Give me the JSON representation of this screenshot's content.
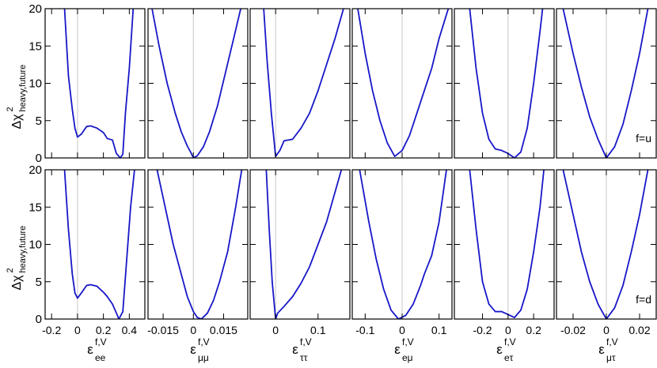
{
  "chart_data": [
    {
      "type": "line",
      "xlim": [
        -0.25,
        0.52
      ],
      "ylim": [
        0,
        20
      ],
      "xticks": [
        -0.2,
        0,
        0.2,
        0.4
      ],
      "yticks": [
        0,
        5,
        10,
        15,
        20
      ],
      "vline": 0,
      "ylabel": {
        "main": "Δχ",
        "sup": "2",
        "sub": "heavy,future"
      },
      "x": [
        -0.1,
        -0.07,
        -0.04,
        -0.02,
        0.0,
        0.03,
        0.07,
        0.1,
        0.15,
        0.2,
        0.23,
        0.27,
        0.3,
        0.33,
        0.35,
        0.37,
        0.4,
        0.43
      ],
      "series": [
        {
          "color": "#1717c8",
          "values": [
            20,
            11,
            6.5,
            4,
            2.8,
            3.2,
            4.2,
            4.3,
            4.0,
            3.4,
            2.6,
            2.4,
            0.6,
            0,
            0.5,
            6,
            12,
            20
          ]
        }
      ]
    },
    {
      "type": "line",
      "xlim": [
        -0.0225,
        0.027
      ],
      "ylim": [
        0,
        20
      ],
      "xticks": [
        -0.015,
        0,
        0.015
      ],
      "yticks": [
        0,
        5,
        10,
        15,
        20
      ],
      "vline": 0,
      "x": [
        -0.0205,
        -0.017,
        -0.013,
        -0.009,
        -0.006,
        -0.003,
        -0.001,
        0,
        0.002,
        0.005,
        0.008,
        0.012,
        0.016,
        0.02,
        0.0235
      ],
      "series": [
        {
          "color": "#1717c8",
          "values": [
            20,
            15,
            10,
            6,
            3.5,
            1.6,
            0.6,
            0,
            0.3,
            1.5,
            3.5,
            7,
            11.5,
            16,
            20
          ]
        }
      ]
    },
    {
      "type": "line",
      "xlim": [
        -0.06,
        0.175
      ],
      "ylim": [
        0,
        20
      ],
      "xticks": [
        0,
        0.1
      ],
      "yticks": [
        0,
        5,
        10,
        15,
        20
      ],
      "vline": 0,
      "x": [
        -0.028,
        -0.02,
        -0.01,
        0,
        0.01,
        0.02,
        0.04,
        0.06,
        0.08,
        0.1,
        0.12,
        0.14,
        0.16
      ],
      "series": [
        {
          "color": "#1717c8",
          "values": [
            20,
            13,
            6,
            0.2,
            1,
            2.3,
            2.5,
            4,
            6,
            9,
            12.5,
            16,
            20
          ]
        }
      ]
    },
    {
      "type": "line",
      "xlim": [
        -0.135,
        0.135
      ],
      "ylim": [
        0,
        20
      ],
      "xticks": [
        -0.1,
        0,
        0.1
      ],
      "yticks": [
        0,
        5,
        10,
        15,
        20
      ],
      "vline": 0,
      "x": [
        -0.12,
        -0.1,
        -0.08,
        -0.06,
        -0.04,
        -0.02,
        0,
        0.02,
        0.04,
        0.06,
        0.08,
        0.1,
        0.125
      ],
      "series": [
        {
          "color": "#1717c8",
          "values": [
            20,
            14,
            9,
            5,
            2,
            0.2,
            1,
            3,
            6,
            9,
            12,
            16,
            20
          ]
        }
      ]
    },
    {
      "type": "line",
      "xlim": [
        -0.42,
        0.36
      ],
      "ylim": [
        0,
        20
      ],
      "xticks": [
        -0.2,
        0,
        0.2
      ],
      "yticks": [
        0,
        5,
        10,
        15,
        20
      ],
      "vline": 0,
      "x": [
        -0.3,
        -0.25,
        -0.2,
        -0.15,
        -0.1,
        -0.05,
        0,
        0.05,
        0.1,
        0.15,
        0.2,
        0.25,
        0.27
      ],
      "series": [
        {
          "color": "#1717c8",
          "values": [
            20,
            12,
            6,
            2.5,
            1.2,
            1,
            0.6,
            0,
            0.8,
            4,
            10,
            17,
            20
          ]
        }
      ]
    },
    {
      "type": "line",
      "xlim": [
        -0.03,
        0.03
      ],
      "ylim": [
        0,
        20
      ],
      "xticks": [
        -0.02,
        0,
        0.02
      ],
      "yticks": [
        0,
        5,
        10,
        15,
        20
      ],
      "vline": 0,
      "annotation": "f=u",
      "x": [
        -0.026,
        -0.02,
        -0.015,
        -0.01,
        -0.005,
        0,
        0.005,
        0.01,
        0.015,
        0.02,
        0.025
      ],
      "series": [
        {
          "color": "#1717c8",
          "values": [
            20,
            14,
            9.5,
            5.5,
            2.5,
            0,
            1.5,
            4.5,
            9,
            14,
            20
          ]
        }
      ]
    },
    {
      "type": "line",
      "xlim": [
        -0.25,
        0.52
      ],
      "ylim": [
        0,
        20
      ],
      "xticks": [
        -0.2,
        0,
        0.2,
        0.4
      ],
      "yticks": [
        0,
        5,
        10,
        15,
        20
      ],
      "vline": 0,
      "ylabel": {
        "main": "Δχ",
        "sup": "2",
        "sub": "heavy,future"
      },
      "xlabel": {
        "main": "ε",
        "sup": "f,V",
        "sub": "ee"
      },
      "x": [
        -0.1,
        -0.07,
        -0.04,
        -0.02,
        0,
        0.03,
        0.07,
        0.1,
        0.15,
        0.2,
        0.23,
        0.27,
        0.3,
        0.32,
        0.35,
        0.38,
        0.41,
        0.44
      ],
      "series": [
        {
          "color": "#1717c8",
          "values": [
            20,
            12,
            6,
            3.5,
            2.8,
            3.5,
            4.5,
            4.6,
            4.4,
            3.6,
            3,
            2,
            0.8,
            0,
            1,
            8,
            15,
            20
          ]
        }
      ]
    },
    {
      "type": "line",
      "xlim": [
        -0.0225,
        0.027
      ],
      "ylim": [
        0,
        20
      ],
      "xticks": [
        -0.015,
        0,
        0.015
      ],
      "yticks": [
        0,
        5,
        10,
        15,
        20
      ],
      "vline": 0,
      "xlabel": {
        "main": "ε",
        "sup": "f,V",
        "sub": "μμ"
      },
      "x": [
        -0.018,
        -0.014,
        -0.01,
        -0.006,
        -0.003,
        0,
        0.002,
        0.004,
        0.007,
        0.01,
        0.013,
        0.017,
        0.021,
        0.024
      ],
      "series": [
        {
          "color": "#1717c8",
          "values": [
            20,
            15,
            10,
            6,
            3,
            1,
            0.2,
            0,
            0.8,
            2.5,
            5,
            9,
            15,
            20
          ]
        }
      ]
    },
    {
      "type": "line",
      "xlim": [
        -0.06,
        0.175
      ],
      "ylim": [
        0,
        20
      ],
      "xticks": [
        0,
        0.1
      ],
      "yticks": [
        0,
        5,
        10,
        15,
        20
      ],
      "vline": 0,
      "xlabel": {
        "main": "ε",
        "sup": "f,V",
        "sub": "ττ"
      },
      "x": [
        -0.022,
        -0.015,
        -0.008,
        0,
        0.005,
        0.02,
        0.04,
        0.06,
        0.08,
        0.1,
        0.12,
        0.14,
        0.155
      ],
      "series": [
        {
          "color": "#1717c8",
          "values": [
            20,
            12,
            5,
            0,
            0.8,
            1.7,
            3,
            4.8,
            7,
            10,
            13,
            17,
            20
          ]
        }
      ]
    },
    {
      "type": "line",
      "xlim": [
        -0.135,
        0.135
      ],
      "ylim": [
        0,
        20
      ],
      "xticks": [
        -0.1,
        0,
        0.1
      ],
      "yticks": [
        0,
        5,
        10,
        15,
        20
      ],
      "vline": 0,
      "xlabel": {
        "main": "ε",
        "sup": "f,V",
        "sub": "eμ"
      },
      "x": [
        -0.115,
        -0.09,
        -0.07,
        -0.05,
        -0.03,
        -0.01,
        0.01,
        0.03,
        0.05,
        0.06,
        0.08,
        0.1,
        0.12
      ],
      "series": [
        {
          "color": "#1717c8",
          "values": [
            20,
            13,
            8,
            4,
            1.2,
            0,
            0.5,
            2,
            4.5,
            6,
            8.5,
            13,
            20
          ]
        }
      ]
    },
    {
      "type": "line",
      "xlim": [
        -0.42,
        0.36
      ],
      "ylim": [
        0,
        20
      ],
      "xticks": [
        -0.2,
        0,
        0.2
      ],
      "yticks": [
        0,
        5,
        10,
        15,
        20
      ],
      "vline": 0,
      "xlabel": {
        "main": "ε",
        "sup": "f,V",
        "sub": "eτ"
      },
      "x": [
        -0.3,
        -0.25,
        -0.2,
        -0.15,
        -0.1,
        -0.05,
        0,
        0.05,
        0.1,
        0.15,
        0.2,
        0.25,
        0.28
      ],
      "series": [
        {
          "color": "#1717c8",
          "values": [
            20,
            12,
            5,
            2,
            1,
            1,
            0.6,
            0.2,
            1.2,
            4,
            9,
            15,
            20
          ]
        }
      ]
    },
    {
      "type": "line",
      "xlim": [
        -0.03,
        0.03
      ],
      "ylim": [
        0,
        20
      ],
      "xticks": [
        -0.02,
        0,
        0.02
      ],
      "yticks": [
        0,
        5,
        10,
        15,
        20
      ],
      "vline": 0,
      "annotation": "f=d",
      "xlabel": {
        "main": "ε",
        "sup": "f,V",
        "sub": "μτ"
      },
      "x": [
        -0.026,
        -0.02,
        -0.015,
        -0.01,
        -0.005,
        0,
        0.005,
        0.01,
        0.015,
        0.02,
        0.025
      ],
      "series": [
        {
          "color": "#1717c8",
          "values": [
            20,
            14,
            9,
            5,
            2,
            0,
            1.5,
            4.5,
            9,
            14,
            20
          ]
        }
      ]
    }
  ]
}
